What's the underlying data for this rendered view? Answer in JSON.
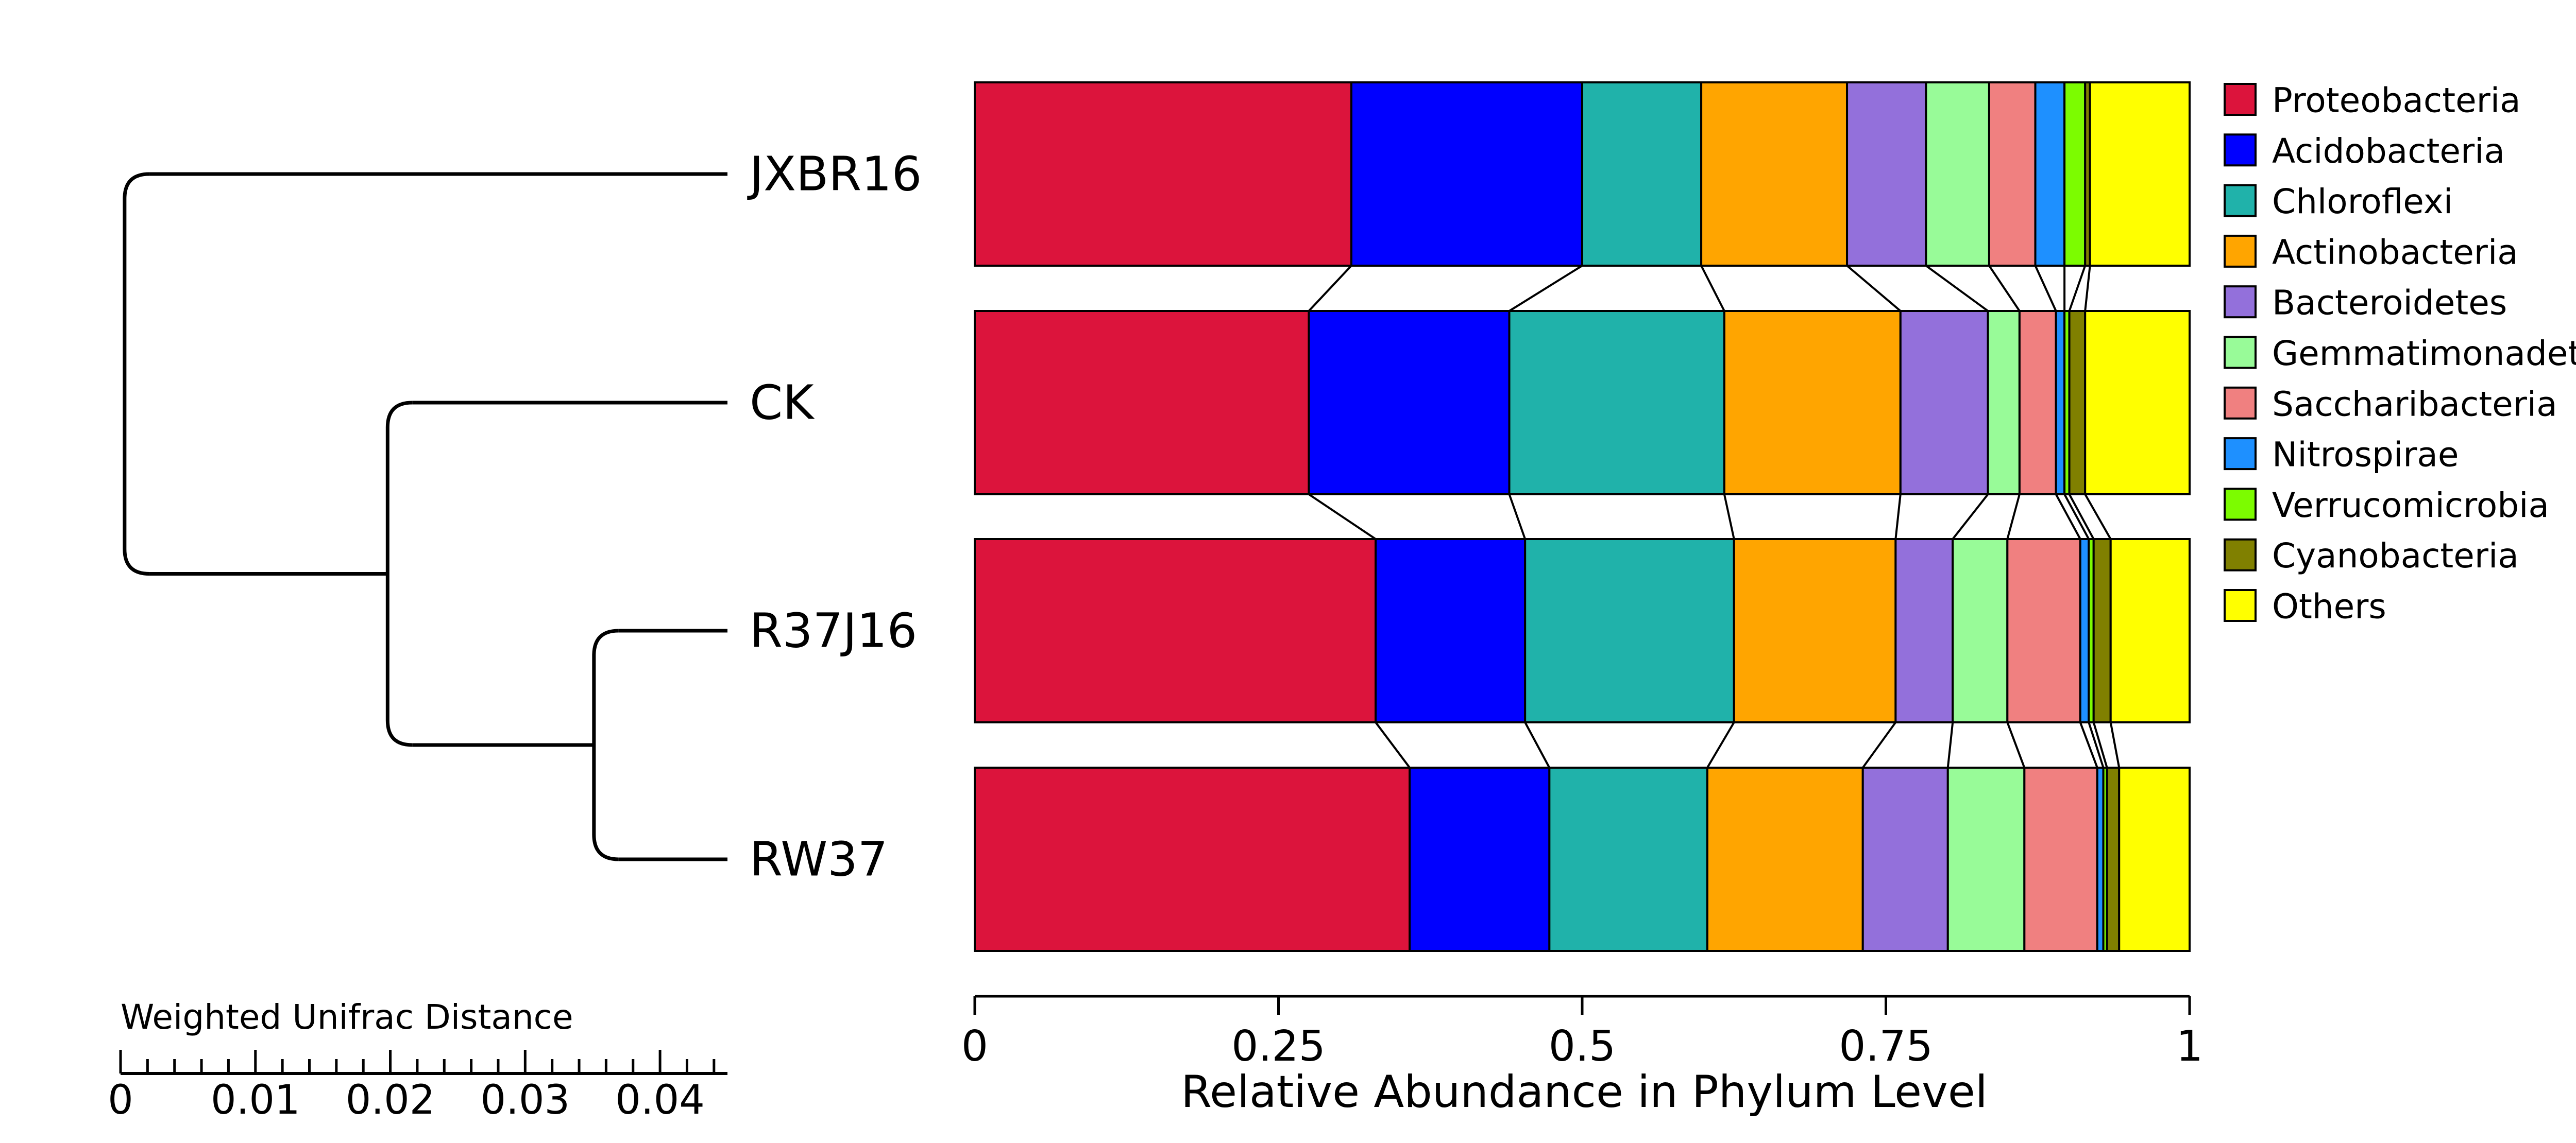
{
  "chart_data": {
    "type": "bar",
    "orientation": "horizontal",
    "stacked": true,
    "normalized": true,
    "xlabel": "Relative Abundance in Phylum Level",
    "xlim": [
      0,
      1
    ],
    "x_ticks": [
      "0",
      "0.25",
      "0.5",
      "0.75",
      "1"
    ],
    "x_tick_values": [
      0,
      0.25,
      0.5,
      0.75,
      1
    ],
    "categories": [
      "JXBR16",
      "CK",
      "R37J16",
      "RW37"
    ],
    "legend_position": "right",
    "grid": false,
    "series": [
      {
        "name": "Proteobacteria",
        "color": "#DC143C",
        "values": [
          0.31,
          0.275,
          0.33,
          0.358
        ]
      },
      {
        "name": "Acidobacteria",
        "color": "#0000FF",
        "values": [
          0.19,
          0.165,
          0.123,
          0.115
        ]
      },
      {
        "name": "Chloroflexi",
        "color": "#20B2AA",
        "values": [
          0.098,
          0.177,
          0.172,
          0.13
        ]
      },
      {
        "name": "Actinobacteria",
        "color": "#FFA500",
        "values": [
          0.12,
          0.145,
          0.133,
          0.128
        ]
      },
      {
        "name": "Bacteroidetes",
        "color": "#9370DB",
        "values": [
          0.065,
          0.072,
          0.047,
          0.07
        ]
      },
      {
        "name": "Gemmatimonadetes",
        "color": "#98FB98",
        "values": [
          0.052,
          0.026,
          0.045,
          0.063
        ]
      },
      {
        "name": "Saccharibacteria",
        "color": "#F08080",
        "values": [
          0.038,
          0.03,
          0.06,
          0.06
        ]
      },
      {
        "name": "Nitrospirae",
        "color": "#1E90FF",
        "values": [
          0.024,
          0.007,
          0.007,
          0.005
        ]
      },
      {
        "name": "Verrucomicrobia",
        "color": "#7CFC00",
        "values": [
          0.017,
          0.004,
          0.004,
          0.003
        ]
      },
      {
        "name": "Cyanobacteria",
        "color": "#808000",
        "values": [
          0.004,
          0.013,
          0.014,
          0.01
        ]
      },
      {
        "name": "Others",
        "color": "#FFFF00",
        "values": [
          0.082,
          0.086,
          0.065,
          0.058
        ]
      }
    ],
    "dendrogram": {
      "title": "Weighted Unifrac Distance",
      "axis_ticks": [
        "0",
        "0.01",
        "0.02",
        "0.03",
        "0.04"
      ],
      "axis_tick_values": [
        0,
        0.01,
        0.02,
        0.03,
        0.04
      ],
      "axis_max": 0.045,
      "merges": [
        {
          "left": "R37J16",
          "right": "RW37",
          "height": 0.0099
        },
        {
          "left": "CK",
          "right": "R37J16+RW37",
          "height": 0.0252
        },
        {
          "left": "JXBR16",
          "right": "CK+R37J16+RW37",
          "height": 0.0447
        }
      ]
    }
  }
}
